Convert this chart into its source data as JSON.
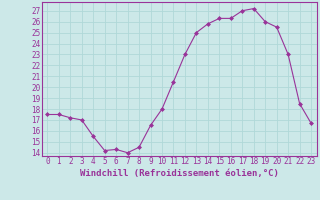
{
  "x": [
    0,
    1,
    2,
    3,
    4,
    5,
    6,
    7,
    8,
    9,
    10,
    11,
    12,
    13,
    14,
    15,
    16,
    17,
    18,
    19,
    20,
    21,
    22,
    23
  ],
  "y": [
    17.5,
    17.5,
    17.2,
    17.0,
    15.5,
    14.2,
    14.3,
    14.0,
    14.5,
    16.5,
    18.0,
    20.5,
    23.0,
    25.0,
    25.8,
    26.3,
    26.3,
    27.0,
    27.2,
    26.0,
    25.5,
    23.0,
    18.5,
    16.7
  ],
  "line_color": "#993399",
  "marker": "D",
  "marker_size": 2,
  "line_width": 0.8,
  "bg_color": "#cce8e8",
  "grid_color": "#b0d8d8",
  "xlabel": "Windchill (Refroidissement éolien,°C)",
  "xlabel_color": "#993399",
  "xlabel_fontsize": 6.5,
  "ylabel_ticks": [
    14,
    15,
    16,
    17,
    18,
    19,
    20,
    21,
    22,
    23,
    24,
    25,
    26,
    27
  ],
  "xticks": [
    0,
    1,
    2,
    3,
    4,
    5,
    6,
    7,
    8,
    9,
    10,
    11,
    12,
    13,
    14,
    15,
    16,
    17,
    18,
    19,
    20,
    21,
    22,
    23
  ],
  "ylim": [
    13.7,
    27.8
  ],
  "xlim": [
    -0.5,
    23.5
  ],
  "tick_fontsize": 5.5,
  "tick_color": "#993399",
  "spine_color": "#993399"
}
